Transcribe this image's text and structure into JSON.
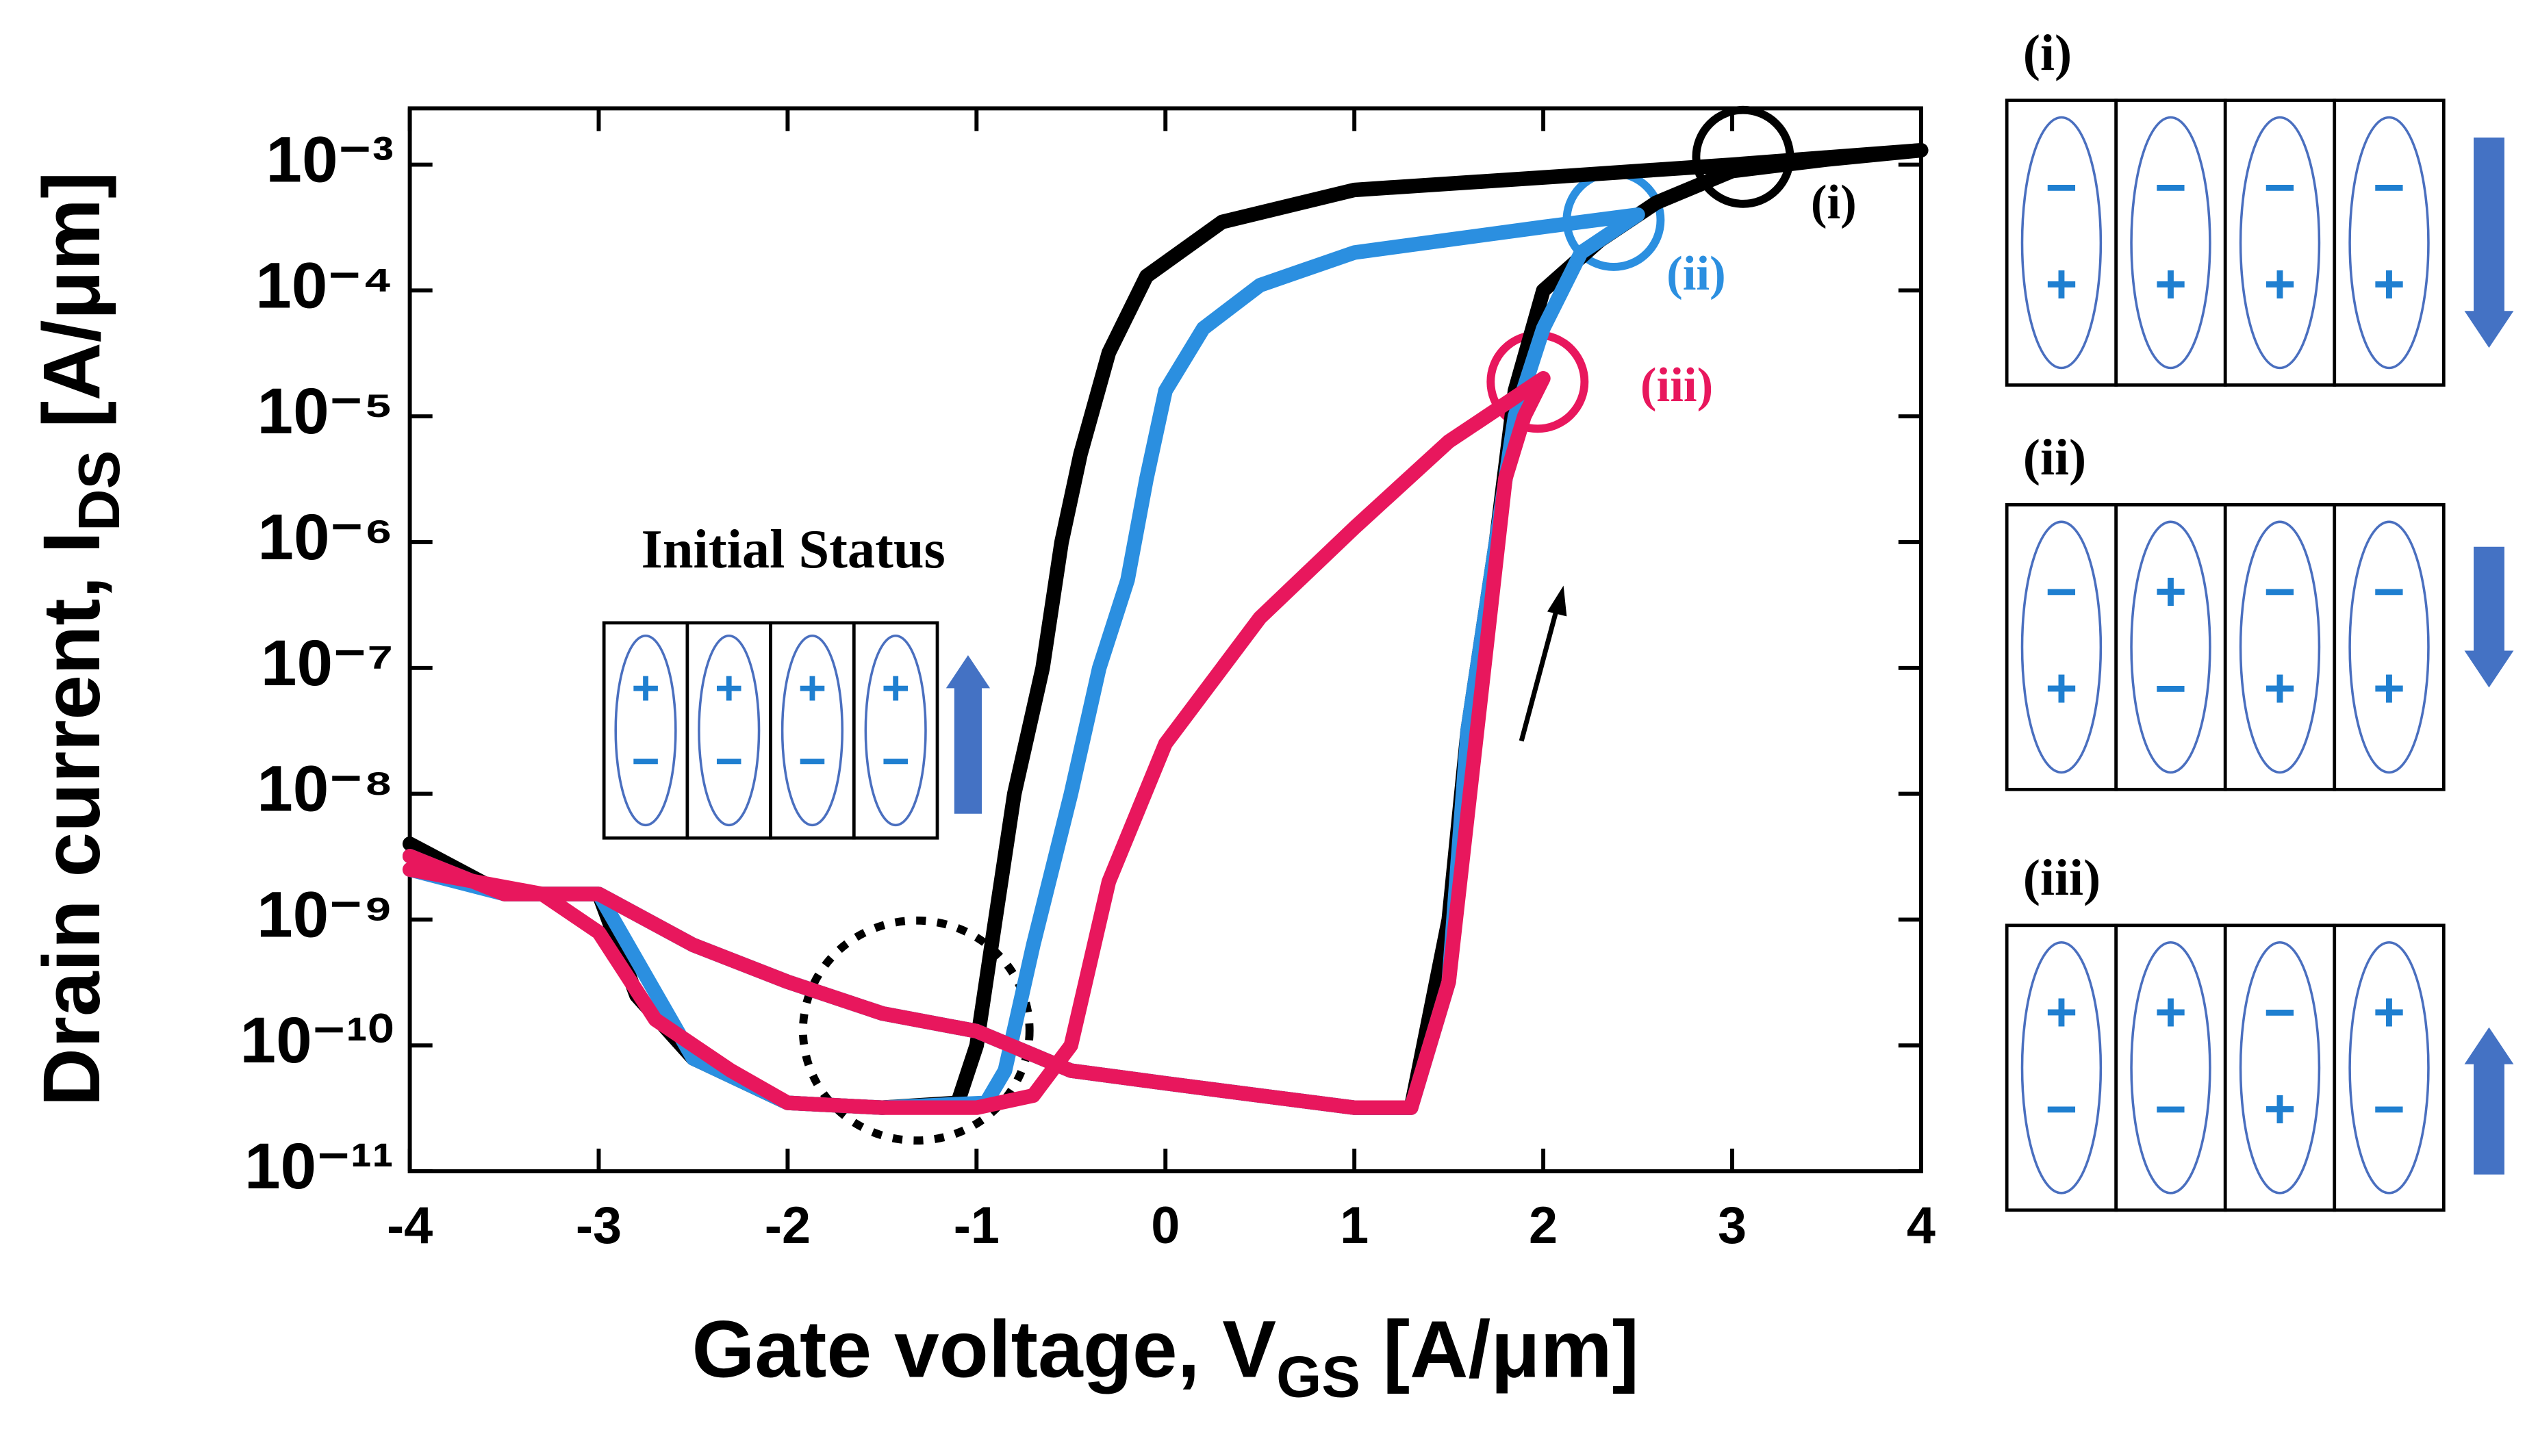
{
  "chart_data": {
    "type": "line",
    "y_label": [
      "Drain current, I",
      "DS",
      " [A/μm]"
    ],
    "x_label": [
      "Gate voltage, V",
      "GS",
      " [A/μm]"
    ],
    "log_y": true,
    "xlim": [
      -4,
      4
    ],
    "xticks": [
      -4,
      -3,
      -2,
      -1,
      0,
      1,
      2,
      3,
      4
    ],
    "ylim": [
      1e-11,
      0.0028
    ],
    "yticks": [
      {
        "value": 1e-11,
        "label": "10⁻¹¹"
      },
      {
        "value": 1e-10,
        "label": "10⁻¹⁰"
      },
      {
        "value": 1e-09,
        "label": "10⁻⁹"
      },
      {
        "value": 1e-08,
        "label": "10⁻⁸"
      },
      {
        "value": 1e-07,
        "label": "10⁻⁷"
      },
      {
        "value": 1e-06,
        "label": "10⁻⁶"
      },
      {
        "value": 1e-05,
        "label": "10⁻⁵"
      },
      {
        "value": 0.0001,
        "label": "10⁻⁴"
      },
      {
        "value": 0.001,
        "label": "10⁻³"
      }
    ],
    "series": [
      {
        "color": "#000000",
        "x": [
          -4,
          -3.5,
          -3,
          -2.5,
          -2,
          -1.5,
          -1,
          -0.5,
          0,
          0.5,
          1,
          1.3,
          1.5,
          1.6,
          1.75,
          1.85,
          2,
          2.3,
          2.6,
          3,
          3.5,
          4,
          3,
          2,
          1,
          0.3,
          -0.1,
          -0.3,
          -0.45,
          -0.55,
          -0.65,
          -0.8,
          -0.9,
          -1,
          -1.1,
          -1.5,
          -2,
          -2.5,
          -2.8,
          -3,
          -3.5,
          -4
        ],
        "values": [
          4e-09,
          1.6e-09,
          1.6e-09,
          6.3e-10,
          3.2e-10,
          1.8e-10,
          1.3e-10,
          6.3e-11,
          5e-11,
          4e-11,
          3.2e-11,
          3.2e-11,
          1e-09,
          3.2e-08,
          1e-06,
          1.6e-05,
          0.0001,
          0.00025,
          0.0005,
          0.00089,
          0.0011,
          0.0013,
          0.001,
          0.00079,
          0.00063,
          0.00035,
          0.00013,
          3.2e-05,
          5e-06,
          1e-06,
          1e-07,
          1e-08,
          1e-09,
          1e-10,
          3.5e-11,
          3.2e-11,
          3.5e-11,
          7.9e-11,
          2.5e-10,
          1.6e-09,
          1.6e-09,
          3.2e-09
        ]
      },
      {
        "color": "#2b8fe0",
        "x": [
          -4,
          -3.5,
          -3,
          -2.5,
          -2,
          -1.5,
          -1,
          -0.5,
          0,
          0.5,
          1,
          1.3,
          1.5,
          1.6,
          1.75,
          1.85,
          2,
          2.2,
          2.5,
          2,
          1,
          0.5,
          0.2,
          0,
          -0.1,
          -0.2,
          -0.35,
          -0.5,
          -0.7,
          -0.85,
          -0.95,
          -1.5,
          -2,
          -2.5,
          -3,
          -3.5,
          -4
        ],
        "values": [
          3.2e-09,
          1.6e-09,
          1.6e-09,
          6.3e-10,
          3.2e-10,
          1.8e-10,
          1.3e-10,
          6.3e-11,
          5e-11,
          4e-11,
          3.2e-11,
          3.2e-11,
          3.2e-10,
          3.2e-08,
          1e-06,
          1e-05,
          5e-05,
          0.0002,
          0.0004,
          0.00032,
          0.0002,
          0.00011,
          5e-05,
          1.6e-05,
          3.2e-06,
          5e-07,
          1e-07,
          1e-08,
          6.3e-10,
          6.3e-11,
          3.5e-11,
          3.2e-11,
          3.5e-11,
          7.9e-11,
          1.6e-09,
          1.6e-09,
          2.5e-09
        ]
      },
      {
        "color": "#e8175d",
        "x": [
          -4,
          -3.5,
          -3,
          -2.5,
          -2,
          -1.5,
          -1,
          -0.5,
          0,
          0.5,
          1,
          1.3,
          1.5,
          1.65,
          1.8,
          1.9,
          2,
          1.5,
          1,
          0.5,
          0,
          -0.3,
          -0.5,
          -0.7,
          -1,
          -1.5,
          -2,
          -2.3,
          -2.7,
          -3,
          -3.3,
          -4
        ],
        "values": [
          3.2e-09,
          1.6e-09,
          1.6e-09,
          6.3e-10,
          3.2e-10,
          1.8e-10,
          1.3e-10,
          6.3e-11,
          5e-11,
          4e-11,
          3.2e-11,
          3.2e-11,
          3.2e-10,
          3.2e-08,
          3.2e-06,
          1e-05,
          2e-05,
          6.3e-06,
          1.3e-06,
          2.5e-07,
          2.5e-08,
          2e-09,
          1e-10,
          4e-11,
          3.2e-11,
          3.2e-11,
          3.5e-11,
          6.3e-11,
          1.6e-10,
          7.9e-10,
          1.6e-09,
          2.5e-09
        ]
      }
    ],
    "annotations": [
      {
        "text": "(i)",
        "color": "#000000"
      },
      {
        "text": "(ii)",
        "color": "#2b8fe0"
      },
      {
        "text": "(iii)",
        "color": "#e8175d"
      }
    ]
  },
  "inset": {
    "title": "Initial Status",
    "arrow": "up",
    "cells": [
      [
        "+",
        "−"
      ],
      [
        "+",
        "−"
      ],
      [
        "+",
        "−"
      ],
      [
        "+",
        "−"
      ]
    ]
  },
  "panels": [
    {
      "label": "(i)",
      "arrow": "down",
      "cells": [
        [
          "−",
          "+"
        ],
        [
          "−",
          "+"
        ],
        [
          "−",
          "+"
        ],
        [
          "−",
          "+"
        ]
      ]
    },
    {
      "label": "(ii)",
      "arrow": "down",
      "cells": [
        [
          "−",
          "+"
        ],
        [
          "+",
          "−"
        ],
        [
          "−",
          "+"
        ],
        [
          "−",
          "+"
        ]
      ]
    },
    {
      "label": "(iii)",
      "arrow": "up",
      "cells": [
        [
          "+",
          "−"
        ],
        [
          "+",
          "−"
        ],
        [
          "−",
          "+"
        ],
        [
          "+",
          "−"
        ]
      ]
    }
  ]
}
